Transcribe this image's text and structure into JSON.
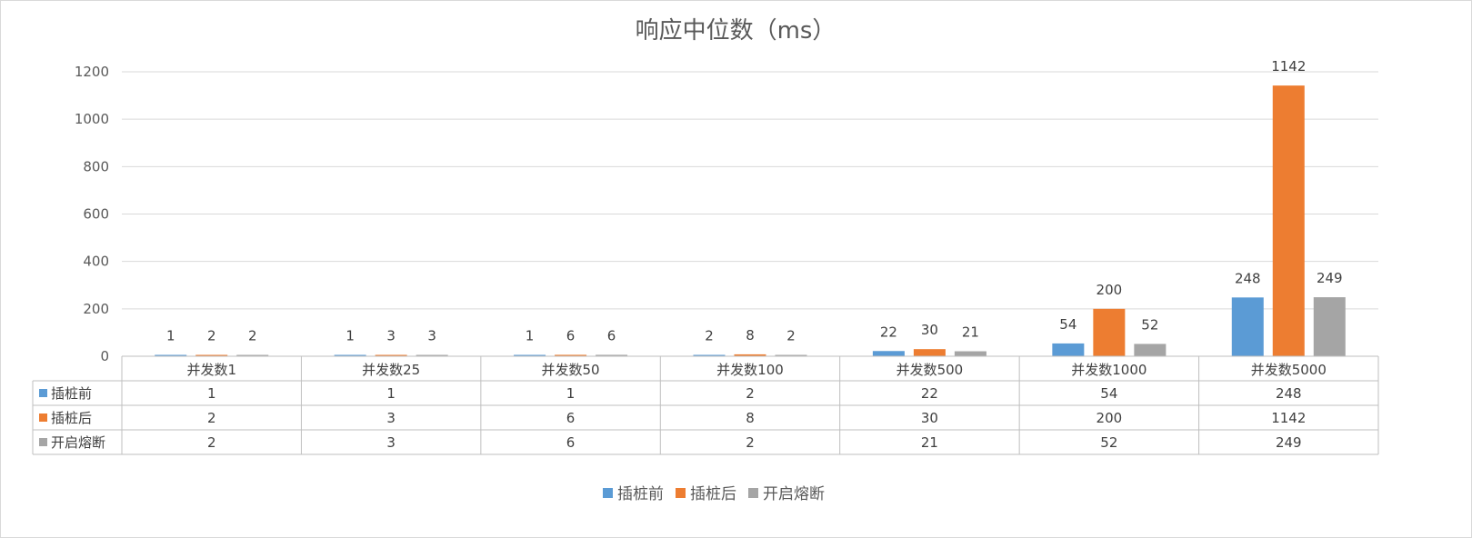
{
  "chart_data": {
    "type": "bar",
    "title": "响应中位数（ms）",
    "categories": [
      "并发数1",
      "并发数25",
      "并发数50",
      "并发数100",
      "并发数500",
      "并发数1000",
      "并发数5000"
    ],
    "series": [
      {
        "name": "插桩前",
        "color": "#5b9bd5",
        "values": [
          1,
          1,
          1,
          2,
          22,
          54,
          248
        ]
      },
      {
        "name": "插桩后",
        "color": "#ed7d31",
        "values": [
          2,
          3,
          6,
          8,
          30,
          200,
          1142
        ]
      },
      {
        "name": "开启熔断",
        "color": "#a5a5a5",
        "values": [
          2,
          3,
          6,
          2,
          21,
          52,
          249
        ]
      }
    ],
    "ylim": [
      0,
      1200
    ],
    "yticks": [
      0,
      200,
      400,
      600,
      800,
      1000,
      1200
    ],
    "grid": true,
    "data_table": true,
    "legend_position": "bottom"
  }
}
